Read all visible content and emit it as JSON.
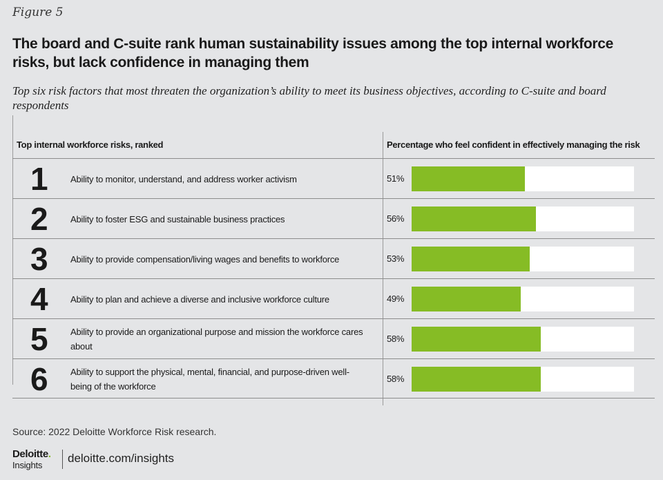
{
  "figure_label": "Figure 5",
  "title": "The board and C-suite rank human sustainability issues among the top internal workforce risks, but lack confidence in managing them",
  "subtitle": "Top six risk factors that most threaten the organization’s ability to meet its business objectives, according to C-suite and board respondents",
  "chart_data": {
    "type": "bar",
    "orientation": "horizontal",
    "column_headers": {
      "left": "Top internal workforce risks, ranked",
      "right": "Percentage who feel confident in effectively managing the risk"
    },
    "rows": [
      {
        "rank": "1",
        "risk": "Ability to monitor, understand, and address worker activism",
        "value": 51,
        "label": "51%"
      },
      {
        "rank": "2",
        "risk": "Ability to foster ESG and sustainable business practices",
        "value": 56,
        "label": "56%"
      },
      {
        "rank": "3",
        "risk": "Ability to provide compensation/living wages and benefits to workforce",
        "value": 53,
        "label": "53%"
      },
      {
        "rank": "4",
        "risk": "Ability to plan and achieve a diverse and inclusive workforce culture",
        "value": 49,
        "label": "49%"
      },
      {
        "rank": "5",
        "risk": "Ability to provide an organizational purpose and mission the workforce cares about",
        "value": 58,
        "label": "58%"
      },
      {
        "rank": "6",
        "risk": "Ability to support the physical, mental, financial, and purpose-driven well-being of the workforce",
        "value": 58,
        "label": "58%"
      }
    ],
    "xlim": [
      0,
      100
    ],
    "bar_color": "#86bc25",
    "track_color": "#ffffff"
  },
  "source": "Source: 2022 Deloitte Workforce Risk research.",
  "footer": {
    "logo_main": "Deloitte",
    "logo_dot": ".",
    "logo_sub": "Insights",
    "url": "deloitte.com/insights"
  },
  "colors": {
    "background": "#e4e5e7",
    "accent": "#86bc25"
  }
}
